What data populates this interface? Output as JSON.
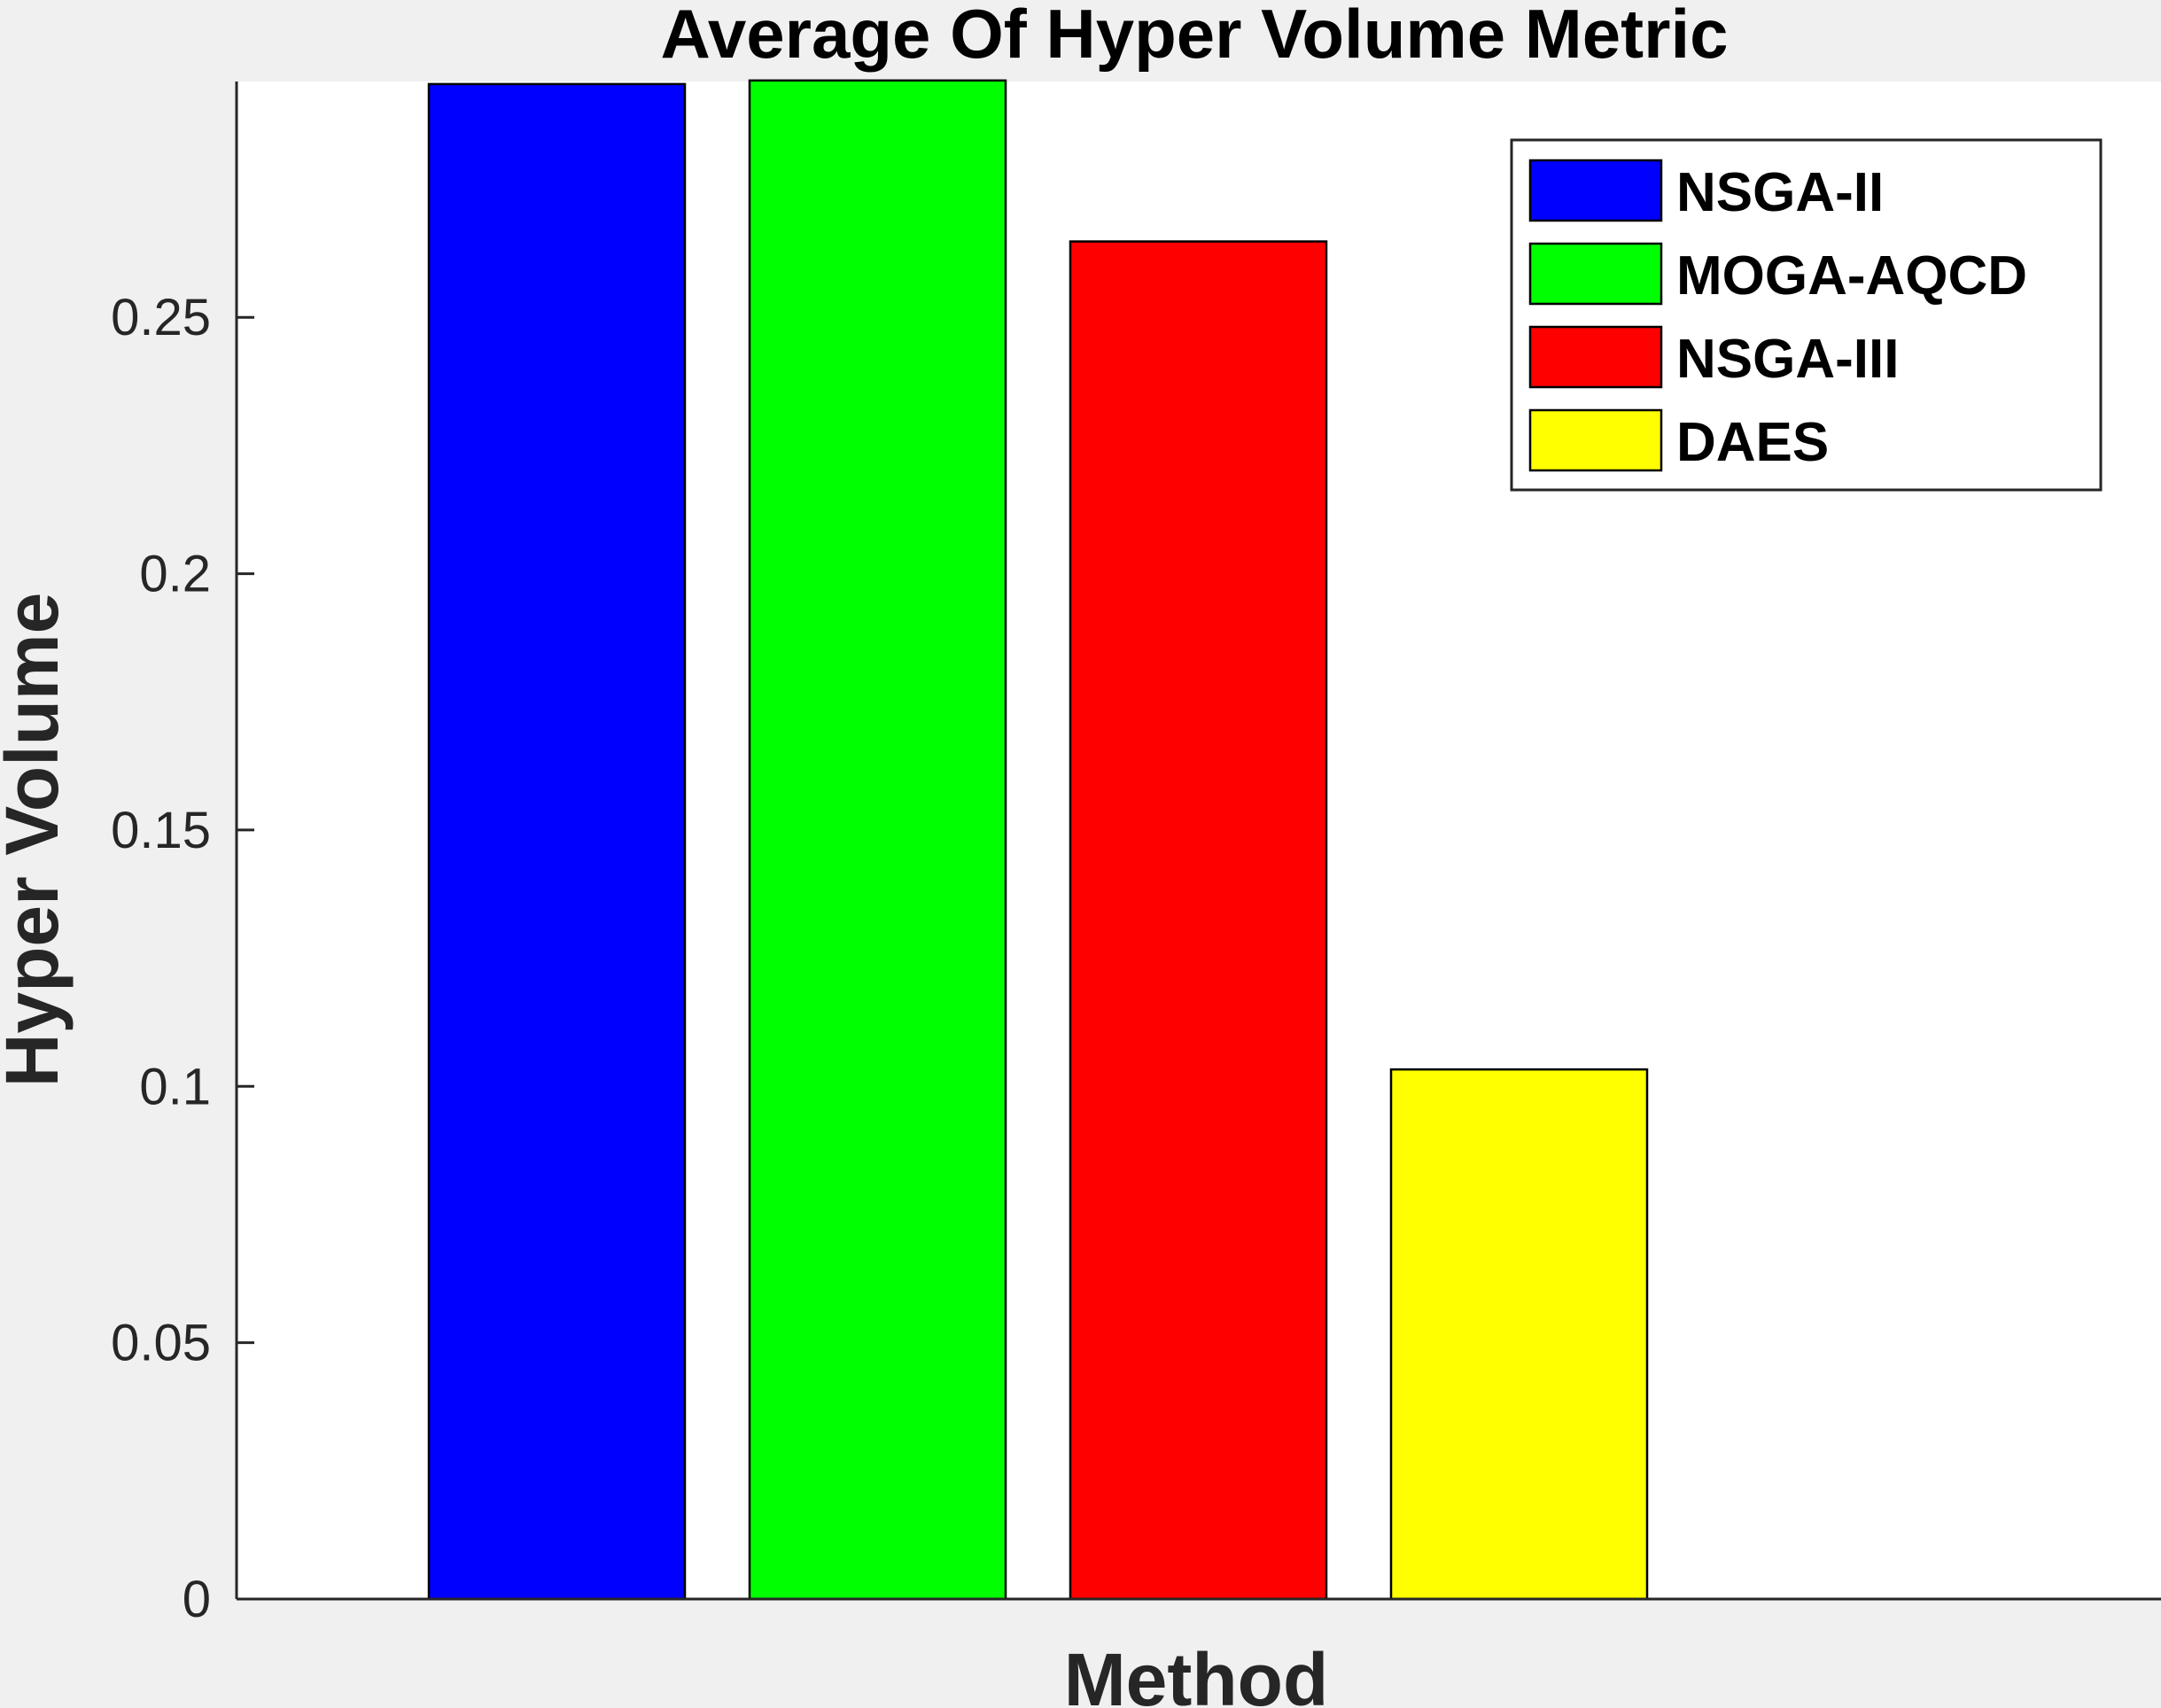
{
  "chart_data": {
    "type": "bar",
    "title": "Average Of Hyper Volume Metric",
    "xlabel": "Method",
    "ylabel": "Hyper Volume",
    "ylim": [
      0,
      0.296
    ],
    "yticks": [
      "0",
      "0.05",
      "0.1",
      "0.15",
      "0.2",
      "0.25"
    ],
    "ytick_values": [
      0,
      0.05,
      0.1,
      0.15,
      0.2,
      0.25
    ],
    "grid": false,
    "legend_position": "top-right",
    "series": [
      {
        "name": "NSGA-II",
        "value": 0.2955,
        "color": "#0000ff"
      },
      {
        "name": "MOGA-AQCD",
        "value": 0.2962,
        "color": "#00ff00"
      },
      {
        "name": "NSGA-III",
        "value": 0.2648,
        "color": "#ff0000"
      },
      {
        "name": "DAES",
        "value": 0.1033,
        "color": "#ffff00"
      }
    ]
  }
}
